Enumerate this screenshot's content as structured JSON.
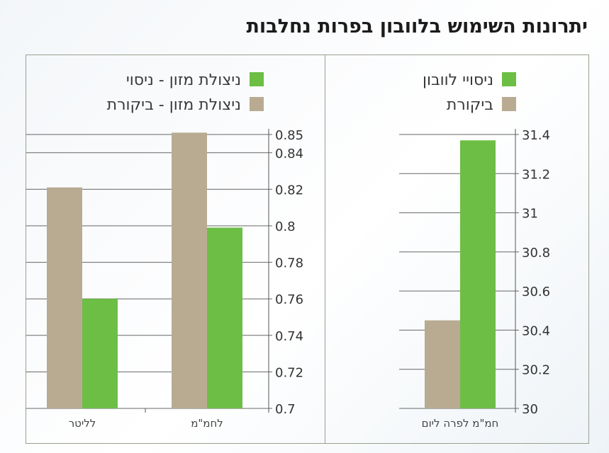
{
  "title": "יתרונות השימוש בלוובון בפרות נחלבות",
  "colors": {
    "trial": "#6dbe45",
    "control": "#b8ab91",
    "grid": "#666666",
    "border": "#9aa08f"
  },
  "chart_data": [
    {
      "type": "bar",
      "categories": [
        "לחמ\"מ",
        "לליטר"
      ],
      "series": [
        {
          "name": "ניצולת מזון - ביקורת",
          "color": "#b8ab91",
          "values": [
            0.851,
            0.821
          ]
        },
        {
          "name": "ניצולת מזון - ניסוי",
          "color": "#6dbe45",
          "values": [
            0.799,
            0.76
          ]
        }
      ],
      "yticks": [
        "0.7",
        "0.72",
        "0.74",
        "0.76",
        "0.78",
        "0.8",
        "0.82",
        "0.84",
        "0.85"
      ],
      "ylim": [
        0.7,
        0.85
      ],
      "grid": true,
      "legend_position": "top"
    },
    {
      "type": "bar",
      "categories": [
        "חמ\"מ לפרה ליום"
      ],
      "series": [
        {
          "name": "ביקורת",
          "color": "#b8ab91",
          "values": [
            30.45
          ]
        },
        {
          "name": "ניסויי לוובון",
          "color": "#6dbe45",
          "values": [
            31.37
          ]
        }
      ],
      "yticks": [
        "30",
        "30.2",
        "30.4",
        "30.6",
        "30.8",
        "31",
        "31.2",
        "31.4"
      ],
      "ylim": [
        30,
        31.4
      ],
      "grid": true,
      "legend_position": "top"
    }
  ]
}
